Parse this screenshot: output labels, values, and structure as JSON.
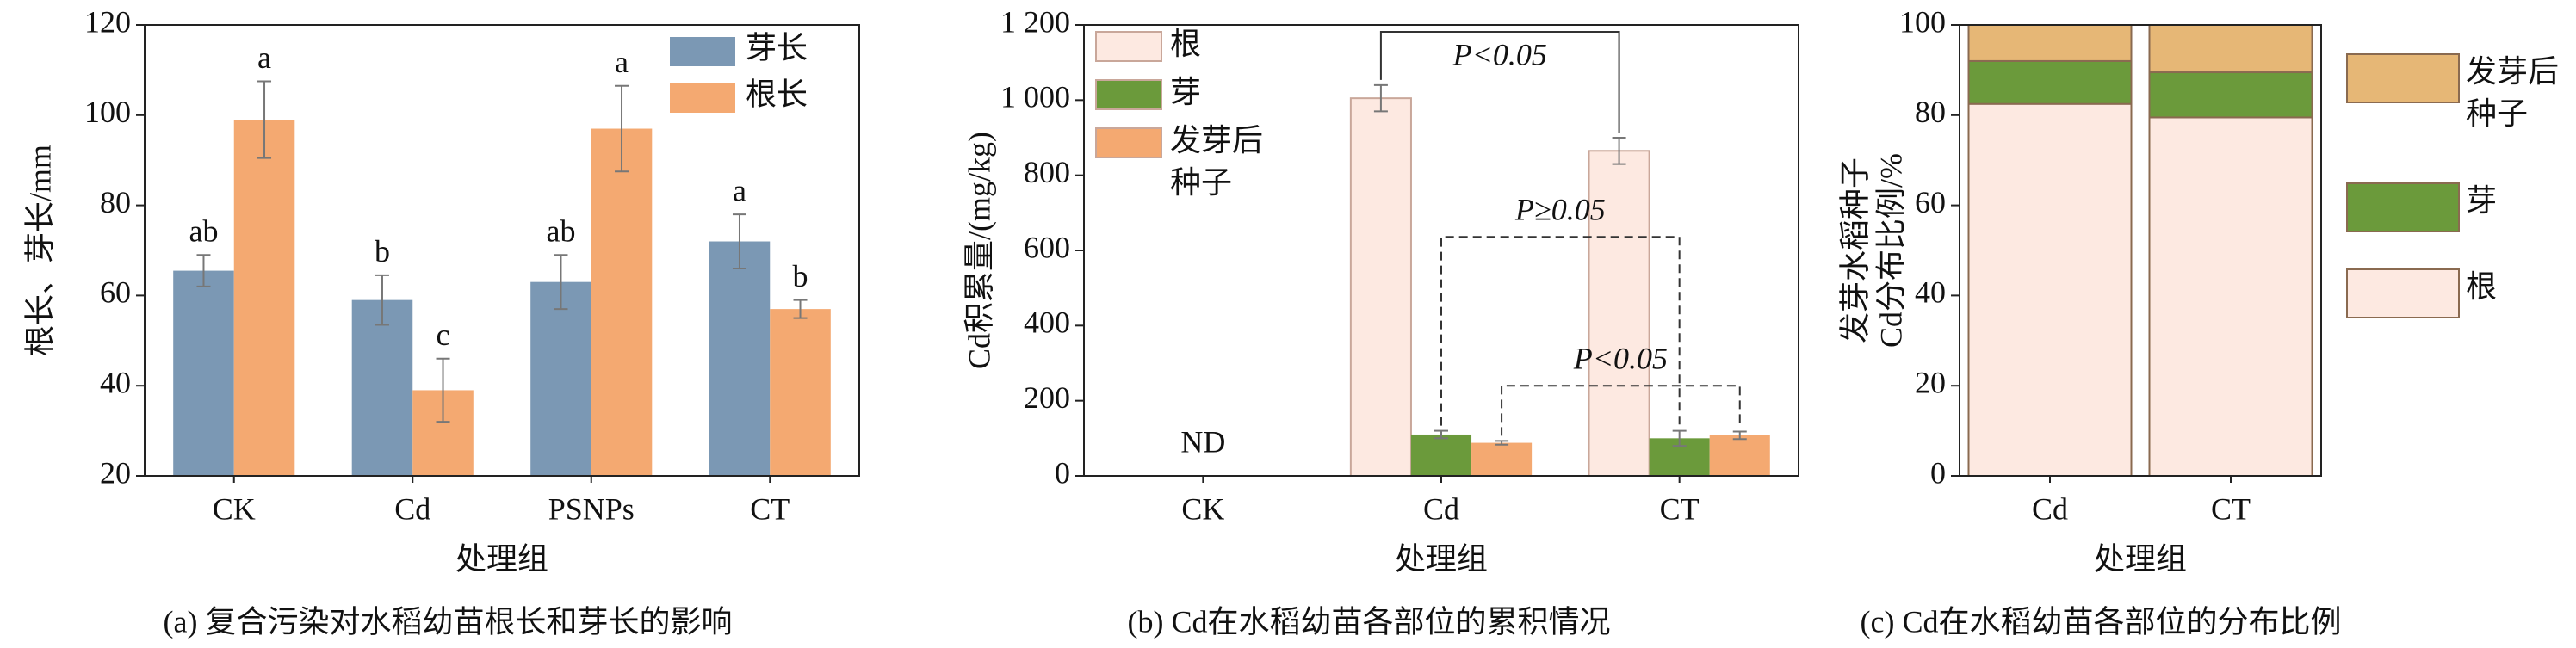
{
  "chart_data": [
    {
      "type": "bar",
      "title": "(a) 复合污染对水稻幼苗根长和芽长的影响",
      "xlabel": "处理组",
      "ylabel": [
        "根长、芽长/mm"
      ],
      "categories": [
        "CK",
        "Cd",
        "PSNPs",
        "CT"
      ],
      "series": [
        {
          "name": "芽长",
          "color": "#7b98b4",
          "values": [
            65.5,
            59,
            63,
            72
          ],
          "errors": [
            3.5,
            5.5,
            6,
            6
          ],
          "letters": [
            "ab",
            "b",
            "ab",
            "a"
          ]
        },
        {
          "name": "根长",
          "color": "#f4a971",
          "values": [
            99,
            39,
            97,
            57
          ],
          "errors": [
            8.5,
            7,
            9.5,
            2
          ],
          "letters": [
            "a",
            "c",
            "a",
            "b"
          ]
        }
      ],
      "ylim": [
        20,
        120
      ],
      "yticks": [
        20,
        40,
        60,
        80,
        100,
        120
      ],
      "legend": "upper right"
    },
    {
      "type": "bar",
      "title": "(b) Cd在水稻幼苗各部位的累积情况",
      "xlabel": "处理组",
      "ylabel": [
        "Cd积累量/(mg/kg)"
      ],
      "categories": [
        "CK",
        "Cd",
        "CT"
      ],
      "series": [
        {
          "name": "根",
          "color": "#fde9e1",
          "values": [
            null,
            1005,
            865
          ],
          "errors": [
            null,
            35,
            35
          ]
        },
        {
          "name": "芽",
          "color": "#6b9a3b",
          "values": [
            null,
            110,
            100
          ],
          "errors": [
            null,
            10,
            20
          ]
        },
        {
          "name": "发芽后种子",
          "color": "#f4a971",
          "values": [
            null,
            88,
            108
          ],
          "errors": [
            null,
            5,
            10
          ]
        }
      ],
      "missing_label": "ND",
      "comparisons": [
        {
          "text": "P<0.05",
          "series": 0,
          "from": 1,
          "to": 2,
          "style": "solid"
        },
        {
          "text": "P≥0.05",
          "series": 1,
          "from": 1,
          "to": 2,
          "style": "dashed"
        },
        {
          "text": "P<0.05",
          "series": 2,
          "from": 1,
          "to": 2,
          "style": "dashed"
        }
      ],
      "ylim": [
        0,
        1200
      ],
      "yticks": [
        0,
        200,
        400,
        600,
        800,
        {
          "value": 1000,
          "label": "1 000"
        },
        {
          "value": 1200,
          "label": "1 200"
        }
      ],
      "legend": "upper left"
    },
    {
      "type": "stacked_bar",
      "title": "(c) Cd在水稻幼苗各部位的分布比例",
      "xlabel": "处理组",
      "ylabel": [
        "发芽水稻种子",
        "Cd分布比例/%"
      ],
      "categories": [
        "Cd",
        "CT"
      ],
      "series": [
        {
          "name": "根",
          "color": "#fde9e1",
          "values": [
            82.5,
            79.5
          ]
        },
        {
          "name": "芽",
          "color": "#6b9a3b",
          "values": [
            9.5,
            10
          ]
        },
        {
          "name": "发芽后种子",
          "color": "#e6b776",
          "values": [
            8,
            10.5
          ]
        }
      ],
      "ylim": [
        0,
        100
      ],
      "yticks": [
        0,
        20,
        40,
        60,
        80,
        100
      ],
      "legend": "outside right"
    }
  ]
}
